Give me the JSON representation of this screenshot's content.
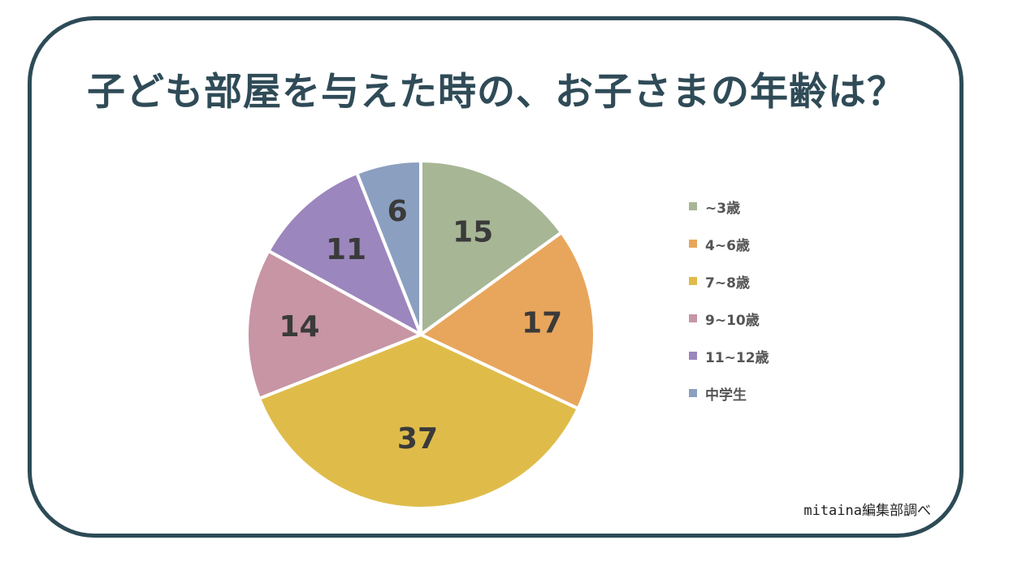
{
  "chart_data": {
    "type": "pie",
    "title": "子ども部屋を与えた時の、お子さまの年齢は？",
    "categories": [
      "~3歳",
      "4~6歳",
      "7~8歳",
      "9~10歳",
      "11~12歳",
      "中学生"
    ],
    "values": [
      15,
      17,
      37,
      14,
      11,
      6
    ],
    "colors": [
      "#a7b695",
      "#e8a65c",
      "#dfbc4a",
      "#c795a4",
      "#9b86bd",
      "#8b9fc0"
    ],
    "legend_position": "right",
    "source_note": "mitaina編集部調べ"
  }
}
